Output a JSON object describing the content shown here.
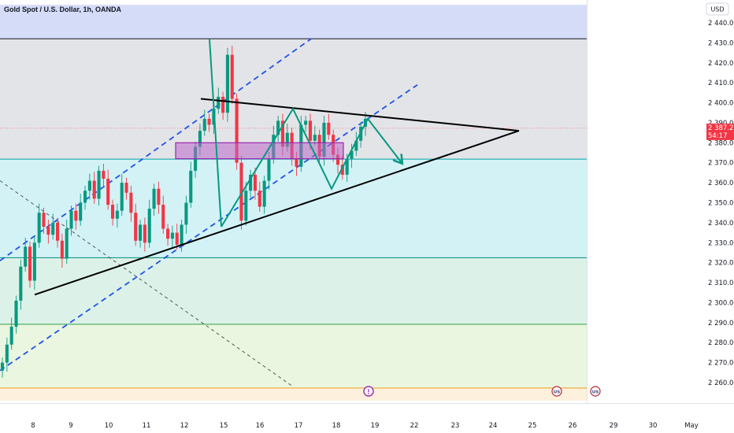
{
  "chart_data": {
    "type": "candlestick",
    "title": "Gold Spot / U.S. Dollar, 1h, OANDA",
    "currency": "USD",
    "y_ticks": [
      "2 440.000",
      "2 430.000",
      "2 420.000",
      "2 410.000",
      "2 400.000",
      "2 390.000",
      "2 380.000",
      "2 370.000",
      "2 360.000",
      "2 350.000",
      "2 340.000",
      "2 330.000",
      "2 320.000",
      "2 310.000",
      "2 300.000",
      "2 290.000",
      "2 280.000",
      "2 270.000",
      "2 260.000"
    ],
    "x_ticks": [
      "8",
      "9",
      "10",
      "11",
      "12",
      "15",
      "16",
      "17",
      "18",
      "19",
      "22",
      "23",
      "24",
      "25",
      "26",
      "29",
      "30",
      "May"
    ],
    "ylim": [
      2251,
      2449
    ],
    "last_price": {
      "value": 2387.26,
      "label": "2 387.260",
      "countdown": "54:17",
      "color": "#f23645"
    },
    "horizontal_levels": [
      {
        "value": 2432.0,
        "color": "#131722"
      },
      {
        "value": 2371.8,
        "color": "#00a3a3"
      },
      {
        "value": 2322.5,
        "color": "#00897b"
      },
      {
        "value": 2289.2,
        "color": "#2e9e44"
      },
      {
        "value": 2257.3,
        "color": "#f0a020"
      }
    ],
    "zones": [
      {
        "from": 2432.0,
        "to": 2449.0,
        "color": "#d4dcf7"
      },
      {
        "from": 2371.8,
        "to": 2432.0,
        "color": "#e3e4e7"
      },
      {
        "from": 2322.5,
        "to": 2371.8,
        "color": "#d3f2f6"
      },
      {
        "from": 2289.2,
        "to": 2322.5,
        "color": "#dcf2e8"
      },
      {
        "from": 2257.3,
        "to": 2289.2,
        "color": "#eaf6e0"
      },
      {
        "from": 2251.0,
        "to": 2257.3,
        "color": "#fdf0dc"
      }
    ],
    "candles_hourly_closes": [
      2270,
      2279,
      2288,
      2301,
      2318,
      2328,
      2311,
      2330,
      2345,
      2338,
      2334,
      2340,
      2331,
      2322,
      2337,
      2346,
      2341,
      2350,
      2356,
      2361,
      2352,
      2366,
      2362,
      2349,
      2342,
      2346,
      2360,
      2355,
      2345,
      2331,
      2339,
      2330,
      2347,
      2357,
      2349,
      2337,
      2332,
      2335,
      2329,
      2339,
      2350,
      2366,
      2378,
      2386,
      2392,
      2389,
      2397,
      2403,
      2395,
      2424,
      2402,
      2370,
      2341,
      2356,
      2364,
      2356,
      2348,
      2361,
      2372,
      2384,
      2391,
      2378,
      2385,
      2372,
      2368,
      2389,
      2391,
      2381,
      2384,
      2373,
      2390,
      2384,
      2374,
      2369,
      2364,
      2372,
      2376,
      2381,
      2388,
      2392
    ],
    "colors": {
      "up": "#089981",
      "down": "#f23645",
      "trendline": "#000000",
      "channel": "#1e53e5",
      "zigzag": "#089981",
      "box": "#9c27b0"
    },
    "badges": [
      "!",
      "US",
      "US"
    ]
  }
}
